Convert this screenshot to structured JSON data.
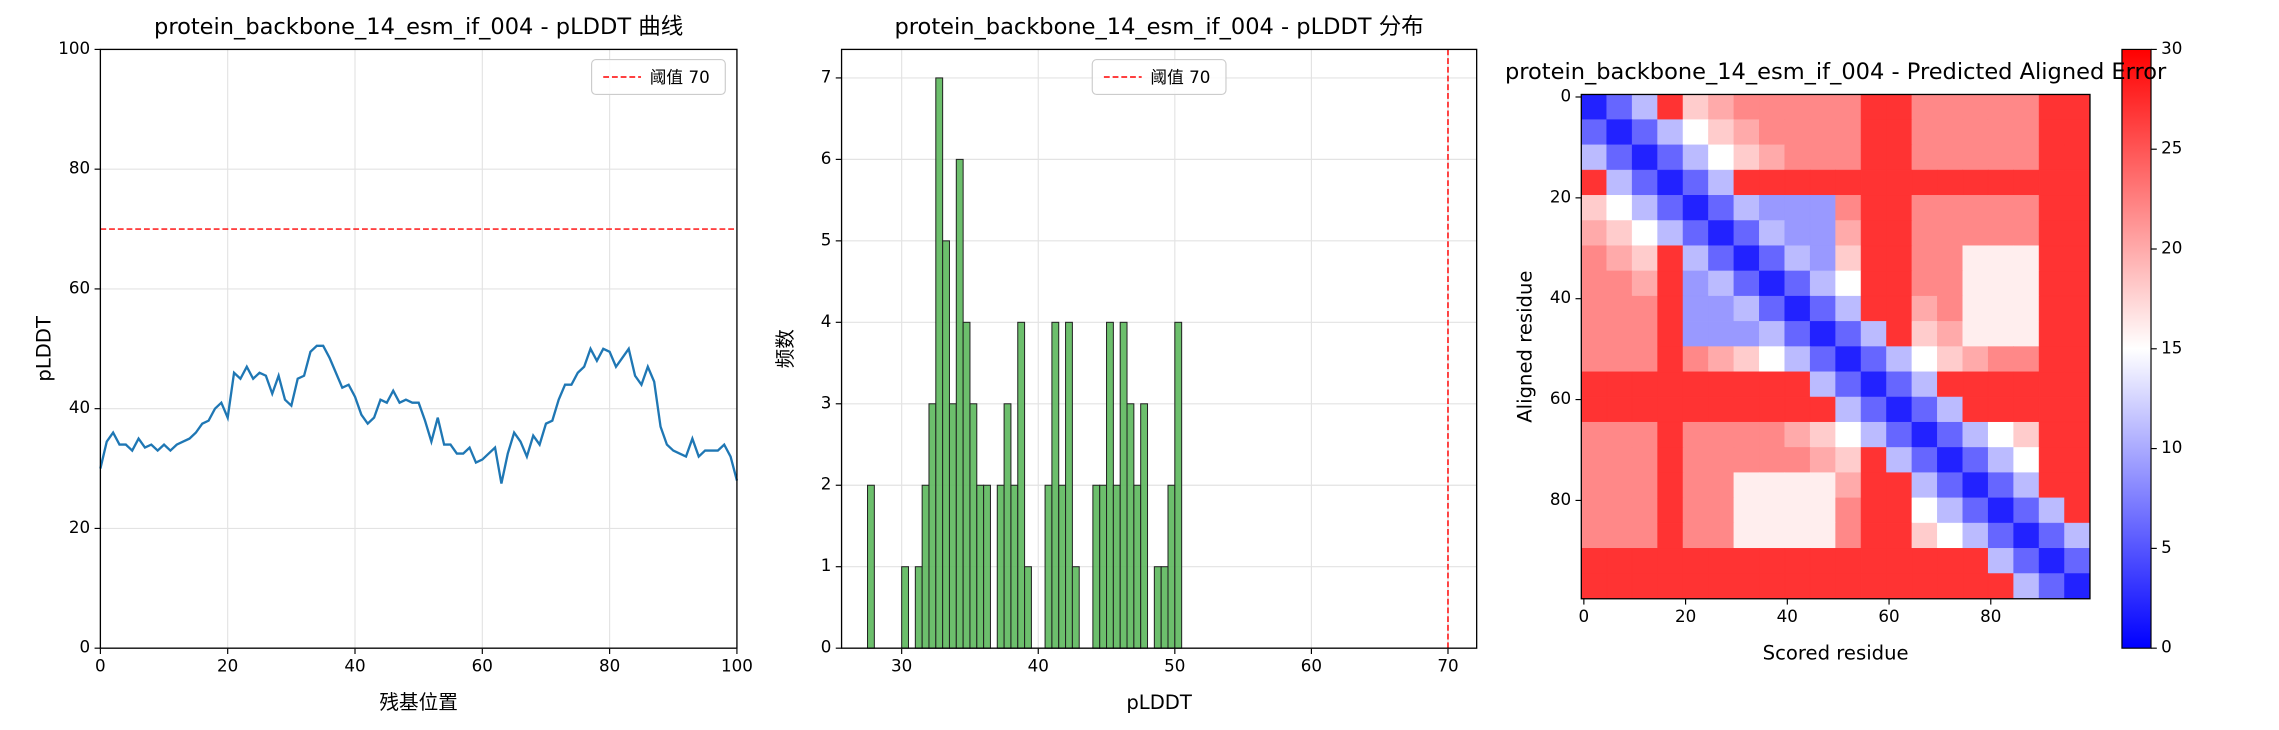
{
  "chart_data": [
    {
      "type": "line",
      "title": "protein_backbone_14_esm_if_004 - pLDDT 曲线",
      "xlabel": "残基位置",
      "ylabel": "pLDDT",
      "x": [
        0,
        1,
        2,
        3,
        4,
        5,
        6,
        7,
        8,
        9,
        10,
        11,
        12,
        13,
        14,
        15,
        16,
        17,
        18,
        19,
        20,
        21,
        22,
        23,
        24,
        25,
        26,
        27,
        28,
        29,
        30,
        31,
        32,
        33,
        34,
        35,
        36,
        37,
        38,
        39,
        40,
        41,
        42,
        43,
        44,
        45,
        46,
        47,
        48,
        49,
        50,
        51,
        52,
        53,
        54,
        55,
        56,
        57,
        58,
        59,
        60,
        61,
        62,
        63,
        64,
        65,
        66,
        67,
        68,
        69,
        70,
        71,
        72,
        73,
        74,
        75,
        76,
        77,
        78,
        79,
        80,
        81,
        82,
        83,
        84,
        85,
        86,
        87,
        88,
        89,
        90,
        91,
        92,
        93,
        94,
        95,
        96,
        97,
        98,
        99,
        100
      ],
      "values": [
        30,
        34.5,
        36,
        34,
        34,
        33,
        35,
        33.5,
        34,
        33,
        34,
        33,
        34,
        34.5,
        35,
        36,
        37.5,
        38,
        40,
        41,
        38.5,
        46,
        45,
        47,
        45,
        46,
        45.5,
        42.5,
        45.5,
        41.5,
        40.5,
        45,
        45.5,
        49.5,
        50.5,
        50.5,
        48.5,
        46,
        43.5,
        44,
        42,
        39,
        37.5,
        38.5,
        41.5,
        41,
        43,
        41,
        41.5,
        41,
        41,
        38,
        34.5,
        38.5,
        34,
        34,
        32.5,
        32.5,
        33.5,
        31,
        31.5,
        32.5,
        33.5,
        27.5,
        32.5,
        36,
        34.5,
        32,
        35.5,
        34,
        37.5,
        38,
        41.5,
        44,
        44,
        46,
        47,
        50,
        48,
        50,
        49.5,
        47,
        48.5,
        50,
        45.5,
        44,
        47,
        44.5,
        37,
        34,
        33,
        32.5,
        32,
        35,
        32,
        33,
        33,
        33,
        34,
        32,
        28
      ],
      "color": "#1f77b4",
      "xlim": [
        0,
        100
      ],
      "ylim": [
        0,
        100
      ],
      "xticks": [
        0,
        20,
        40,
        60,
        80,
        100
      ],
      "yticks": [
        0,
        20,
        40,
        60,
        80,
        100
      ],
      "grid": true,
      "threshold": {
        "value": 70,
        "label": "阈值 70",
        "color": "#ff0000"
      },
      "legend": "upper right"
    },
    {
      "type": "histogram",
      "title": "protein_backbone_14_esm_if_004 - pLDDT 分布",
      "xlabel": "pLDDT",
      "ylabel": "频数",
      "bins": [
        27.5,
        28,
        28.5,
        29,
        29.5,
        30,
        30.5,
        31,
        31.5,
        32,
        32.5,
        33,
        33.5,
        34,
        34.5,
        35,
        35.5,
        36,
        36.5,
        37,
        37.5,
        38,
        38.5,
        39,
        39.5,
        40,
        40.5,
        41,
        41.5,
        42,
        42.5,
        43,
        43.5,
        44,
        44.5,
        45,
        45.5,
        46,
        46.5,
        47,
        47.5,
        48,
        48.5,
        49,
        49.5,
        50,
        50.5
      ],
      "counts": [
        2,
        0,
        0,
        0,
        0,
        1,
        0,
        1,
        2,
        3,
        7,
        5,
        3,
        6,
        4,
        3,
        2,
        2,
        0,
        2,
        3,
        2,
        4,
        1,
        0,
        0,
        2,
        4,
        2,
        4,
        1,
        0,
        0,
        2,
        2,
        4,
        2,
        4,
        3,
        2,
        3,
        0,
        1,
        1,
        2,
        4
      ],
      "color": "#5cb85c",
      "xlim": [
        25.6,
        72.1
      ],
      "ylim": [
        0,
        7.35
      ],
      "xticks": [
        30,
        40,
        50,
        60,
        70
      ],
      "yticks": [
        0,
        1,
        2,
        3,
        4,
        5,
        6,
        7
      ],
      "grid": true,
      "threshold": {
        "value": 70,
        "label": "阈值 70",
        "color": "#ff0000"
      },
      "legend": "upper center"
    },
    {
      "type": "heatmap",
      "title": "protein_backbone_14_esm_if_004 - Predicted Aligned Error",
      "xlabel": "Scored residue",
      "ylabel": "Aligned residue",
      "x_bins": [
        -0.5,
        4.5,
        9.5,
        14.5,
        19.5,
        24.5,
        29.5,
        34.5,
        39.5,
        44.5,
        49.5,
        54.5,
        59.5,
        64.5,
        69.5,
        74.5,
        79.5,
        84.5,
        89.5,
        94.5,
        99.5
      ],
      "y_bins": [
        -0.5,
        4.5,
        9.5,
        14.5,
        19.5,
        24.5,
        29.5,
        34.5,
        39.5,
        44.5,
        49.5,
        54.5,
        59.5,
        64.5,
        69.5,
        74.5,
        79.5,
        84.5,
        89.5,
        94.5,
        99.5
      ],
      "z": [
        [
          2,
          6,
          11,
          27,
          18,
          20,
          22,
          22,
          22,
          22,
          22,
          27,
          27,
          22,
          22,
          22,
          22,
          22,
          27,
          27
        ],
        [
          6,
          2,
          6,
          11,
          15,
          18,
          20,
          22,
          22,
          22,
          22,
          27,
          27,
          22,
          22,
          22,
          22,
          22,
          27,
          27
        ],
        [
          11,
          6,
          2,
          6,
          11,
          15,
          18,
          20,
          22,
          22,
          22,
          27,
          27,
          22,
          22,
          22,
          22,
          22,
          27,
          27
        ],
        [
          27,
          11,
          6,
          2,
          6,
          11,
          27,
          27,
          27,
          27,
          27,
          27,
          27,
          27,
          27,
          27,
          27,
          27,
          27,
          27
        ],
        [
          18,
          15,
          11,
          6,
          2,
          6,
          11,
          9,
          9,
          9,
          22,
          27,
          27,
          22,
          22,
          22,
          22,
          22,
          27,
          27
        ],
        [
          20,
          18,
          15,
          11,
          6,
          2,
          6,
          11,
          9,
          9,
          20,
          27,
          27,
          22,
          22,
          22,
          22,
          22,
          27,
          27
        ],
        [
          22,
          20,
          18,
          27,
          11,
          6,
          2,
          6,
          11,
          9,
          18,
          27,
          27,
          22,
          22,
          16,
          16,
          16,
          27,
          27
        ],
        [
          22,
          22,
          20,
          27,
          9,
          11,
          6,
          2,
          6,
          11,
          15,
          27,
          27,
          22,
          22,
          16,
          16,
          16,
          27,
          27
        ],
        [
          22,
          22,
          22,
          27,
          9,
          9,
          11,
          6,
          2,
          6,
          11,
          27,
          27,
          20,
          22,
          16,
          16,
          16,
          27,
          27
        ],
        [
          22,
          22,
          22,
          27,
          9,
          9,
          9,
          11,
          6,
          2,
          6,
          11,
          27,
          18,
          20,
          16,
          16,
          16,
          27,
          27
        ],
        [
          22,
          22,
          22,
          27,
          22,
          20,
          18,
          15,
          11,
          6,
          2,
          6,
          11,
          15,
          18,
          20,
          22,
          22,
          27,
          27
        ],
        [
          27,
          27,
          27,
          27,
          27,
          27,
          27,
          27,
          27,
          11,
          6,
          2,
          6,
          11,
          27,
          27,
          27,
          27,
          27,
          27
        ],
        [
          27,
          27,
          27,
          27,
          27,
          27,
          27,
          27,
          27,
          27,
          11,
          6,
          2,
          6,
          11,
          27,
          27,
          27,
          27,
          27
        ],
        [
          22,
          22,
          22,
          27,
          22,
          22,
          22,
          22,
          20,
          18,
          15,
          11,
          6,
          2,
          6,
          11,
          15,
          18,
          27,
          27
        ],
        [
          22,
          22,
          22,
          27,
          22,
          22,
          22,
          22,
          22,
          20,
          18,
          27,
          11,
          6,
          2,
          6,
          11,
          15,
          27,
          27
        ],
        [
          22,
          22,
          22,
          27,
          22,
          22,
          16,
          16,
          16,
          16,
          20,
          27,
          27,
          11,
          6,
          2,
          6,
          11,
          27,
          27
        ],
        [
          22,
          22,
          22,
          27,
          22,
          22,
          16,
          16,
          16,
          16,
          22,
          27,
          27,
          15,
          11,
          6,
          2,
          6,
          11,
          27
        ],
        [
          22,
          22,
          22,
          27,
          22,
          22,
          16,
          16,
          16,
          16,
          22,
          27,
          27,
          18,
          15,
          11,
          6,
          2,
          6,
          11
        ],
        [
          27,
          27,
          27,
          27,
          27,
          27,
          27,
          27,
          27,
          27,
          27,
          27,
          27,
          27,
          27,
          27,
          11,
          6,
          2,
          6
        ],
        [
          27,
          27,
          27,
          27,
          27,
          27,
          27,
          27,
          27,
          27,
          27,
          27,
          27,
          27,
          27,
          27,
          27,
          11,
          6,
          2
        ]
      ],
      "cmap": "bwr",
      "vmin": 0,
      "vmax": 30,
      "colorbar_ticks": [
        0,
        5,
        10,
        15,
        20,
        25,
        30
      ],
      "xlim": [
        -0.5,
        99.5
      ],
      "ylim": [
        99.5,
        -0.5
      ],
      "xticks": [
        0,
        20,
        40,
        60,
        80
      ],
      "yticks": [
        0,
        20,
        40,
        60,
        80
      ],
      "grid": false
    }
  ]
}
